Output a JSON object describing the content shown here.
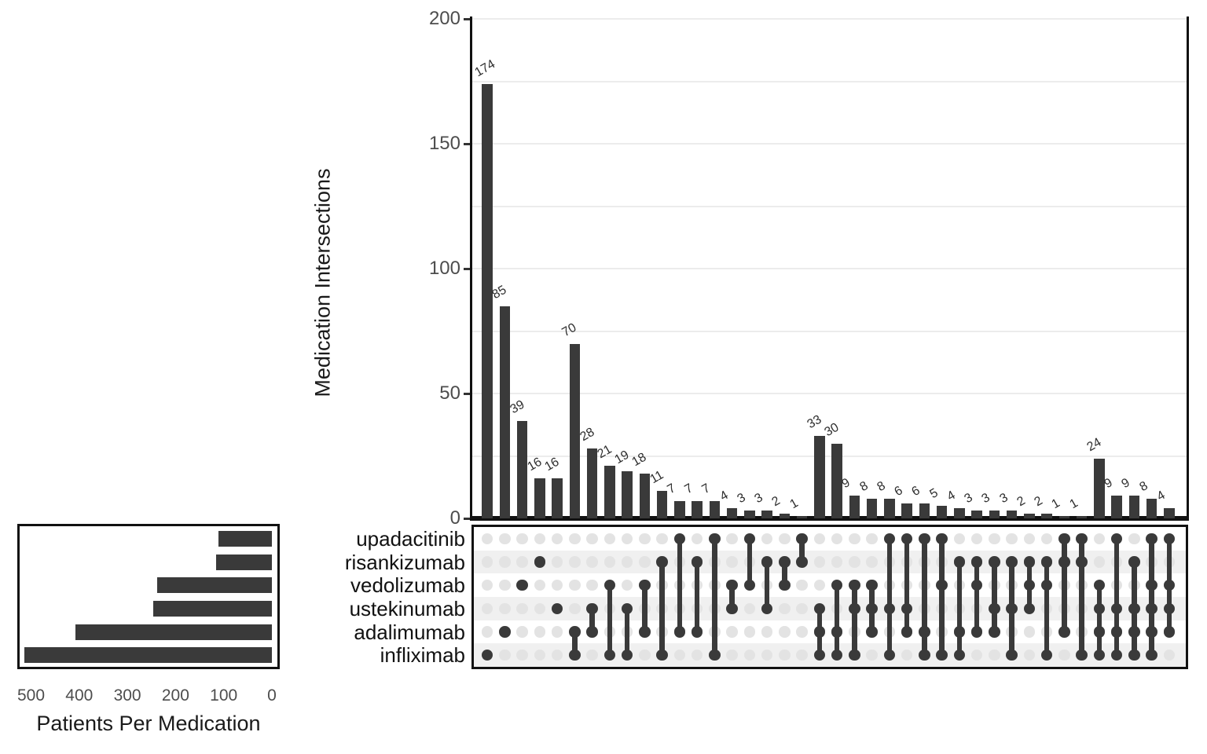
{
  "chart_data": {
    "type": "upset",
    "y_axis": {
      "label": "Medication Intersections",
      "ticks": [
        0,
        50,
        100,
        150,
        200
      ],
      "range": [
        0,
        200
      ],
      "gridline_step": 25,
      "grid": true
    },
    "set_size_axis": {
      "label": "Patients Per Medication",
      "ticks": [
        500,
        400,
        300,
        200,
        100,
        0
      ],
      "range": [
        0,
        500
      ]
    },
    "sets": [
      {
        "name": "upadacitinib",
        "size": 111
      },
      {
        "name": "risankizumab",
        "size": 116
      },
      {
        "name": "vedolizumab",
        "size": 238
      },
      {
        "name": "ustekinumab",
        "size": 247
      },
      {
        "name": "adalimumab",
        "size": 408
      },
      {
        "name": "infliximab",
        "size": 514
      }
    ],
    "intersections": [
      {
        "sets": [
          "infliximab"
        ],
        "value": 174
      },
      {
        "sets": [
          "adalimumab"
        ],
        "value": 85
      },
      {
        "sets": [
          "vedolizumab"
        ],
        "value": 39
      },
      {
        "sets": [
          "risankizumab"
        ],
        "value": 16
      },
      {
        "sets": [
          "ustekinumab"
        ],
        "value": 16
      },
      {
        "sets": [
          "adalimumab",
          "infliximab"
        ],
        "value": 70
      },
      {
        "sets": [
          "ustekinumab",
          "adalimumab"
        ],
        "value": 28
      },
      {
        "sets": [
          "vedolizumab",
          "infliximab"
        ],
        "value": 21
      },
      {
        "sets": [
          "ustekinumab",
          "infliximab"
        ],
        "value": 19
      },
      {
        "sets": [
          "vedolizumab",
          "adalimumab"
        ],
        "value": 18
      },
      {
        "sets": [
          "risankizumab",
          "infliximab"
        ],
        "value": 11
      },
      {
        "sets": [
          "upadacitinib",
          "adalimumab"
        ],
        "value": 7
      },
      {
        "sets": [
          "risankizumab",
          "adalimumab"
        ],
        "value": 7
      },
      {
        "sets": [
          "upadacitinib",
          "infliximab"
        ],
        "value": 7
      },
      {
        "sets": [
          "vedolizumab",
          "ustekinumab"
        ],
        "value": 4
      },
      {
        "sets": [
          "upadacitinib",
          "vedolizumab"
        ],
        "value": 3
      },
      {
        "sets": [
          "risankizumab",
          "ustekinumab"
        ],
        "value": 3
      },
      {
        "sets": [
          "risankizumab",
          "vedolizumab"
        ],
        "value": 2
      },
      {
        "sets": [
          "upadacitinib",
          "risankizumab"
        ],
        "value": 1
      },
      {
        "sets": [
          "ustekinumab",
          "adalimumab",
          "infliximab"
        ],
        "value": 33
      },
      {
        "sets": [
          "vedolizumab",
          "adalimumab",
          "infliximab"
        ],
        "value": 30
      },
      {
        "sets": [
          "vedolizumab",
          "ustekinumab",
          "infliximab"
        ],
        "value": 9
      },
      {
        "sets": [
          "vedolizumab",
          "ustekinumab",
          "adalimumab"
        ],
        "value": 8
      },
      {
        "sets": [
          "upadacitinib",
          "ustekinumab",
          "infliximab"
        ],
        "value": 8
      },
      {
        "sets": [
          "upadacitinib",
          "ustekinumab",
          "adalimumab"
        ],
        "value": 6
      },
      {
        "sets": [
          "upadacitinib",
          "adalimumab",
          "infliximab"
        ],
        "value": 6
      },
      {
        "sets": [
          "upadacitinib",
          "vedolizumab",
          "infliximab"
        ],
        "value": 5
      },
      {
        "sets": [
          "risankizumab",
          "adalimumab",
          "infliximab"
        ],
        "value": 4
      },
      {
        "sets": [
          "risankizumab",
          "vedolizumab",
          "adalimumab"
        ],
        "value": 3
      },
      {
        "sets": [
          "risankizumab",
          "ustekinumab",
          "adalimumab"
        ],
        "value": 3
      },
      {
        "sets": [
          "risankizumab",
          "ustekinumab",
          "infliximab"
        ],
        "value": 3
      },
      {
        "sets": [
          "risankizumab",
          "vedolizumab",
          "ustekinumab"
        ],
        "value": 2
      },
      {
        "sets": [
          "risankizumab",
          "vedolizumab",
          "infliximab"
        ],
        "value": 2
      },
      {
        "sets": [
          "upadacitinib",
          "risankizumab",
          "adalimumab"
        ],
        "value": 1
      },
      {
        "sets": [
          "upadacitinib",
          "risankizumab",
          "infliximab"
        ],
        "value": 1
      },
      {
        "sets": [
          "vedolizumab",
          "ustekinumab",
          "adalimumab",
          "infliximab"
        ],
        "value": 24
      },
      {
        "sets": [
          "upadacitinib",
          "ustekinumab",
          "adalimumab",
          "infliximab"
        ],
        "value": 9
      },
      {
        "sets": [
          "risankizumab",
          "ustekinumab",
          "adalimumab",
          "infliximab"
        ],
        "value": 9
      },
      {
        "sets": [
          "upadacitinib",
          "vedolizumab",
          "ustekinumab",
          "adalimumab",
          "infliximab"
        ],
        "value": 8
      },
      {
        "sets": [
          "upadacitinib",
          "vedolizumab",
          "ustekinumab",
          "adalimumab"
        ],
        "value": 4
      }
    ]
  },
  "colors": {
    "bar": "#3a3a3a",
    "dot_filled": "#3a3a3a",
    "dot_empty": "#e3e3e3",
    "gridline": "#ececec",
    "row_stripe": "#f0f0f0",
    "axis_text": "#4d4d4d",
    "label_text": "#1a1a1a",
    "border": "#111111"
  }
}
